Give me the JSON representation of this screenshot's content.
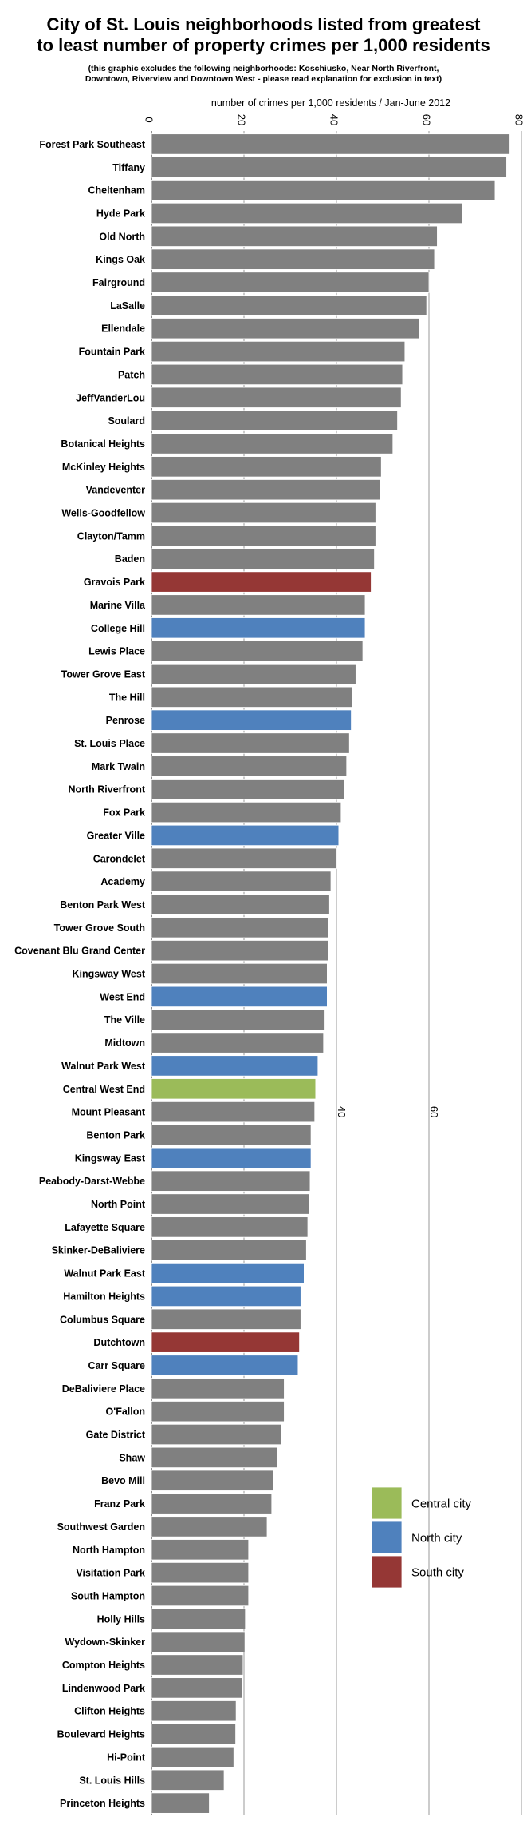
{
  "header": {
    "title_line1": "City of St. Louis neighborhoods listed from greatest",
    "title_line2": "to least number of property crimes per 1,000 residents",
    "note_line1": "(this graphic excludes the following neighborhoods: Koschiusko, Near North Riverfront,",
    "note_line2": "Downtown, Riverview and Downtown West - please read explanation for exclusion in text)"
  },
  "colors": {
    "default": "#808080",
    "central": "#9bbb59",
    "north": "#4f81bd",
    "south": "#953735"
  },
  "chart_data": {
    "type": "bar",
    "orientation": "horizontal",
    "xlabel": "number of crimes per 1,000 residents / Jan-June 2012",
    "xlim": [
      0,
      80
    ],
    "x_ticks": [
      0,
      20,
      40,
      60,
      80
    ],
    "mid_tick_labels": [
      "40",
      "60"
    ],
    "grid": true,
    "legend_position": "bottom-right",
    "legend": [
      {
        "key": "central",
        "label": "Central city"
      },
      {
        "key": "north",
        "label": "North city"
      },
      {
        "key": "south",
        "label": "South city"
      }
    ],
    "categories": [
      "Forest Park Southeast",
      "Tiffany",
      "Cheltenham",
      "Hyde Park",
      "Old North",
      "Kings Oak",
      "Fairground",
      "LaSalle",
      "Ellendale",
      "Fountain Park",
      "Patch",
      "JeffVanderLou",
      "Soulard",
      "Botanical Heights",
      "McKinley Heights",
      "Vandeventer",
      "Wells-Goodfellow",
      "Clayton/Tamm",
      "Baden",
      "Gravois Park",
      "Marine Villa",
      "College Hill",
      "Lewis Place",
      "Tower Grove East",
      "The Hill",
      "Penrose",
      "St. Louis Place",
      "Mark Twain",
      "North Riverfront",
      "Fox Park",
      "Greater Ville",
      "Carondelet",
      "Academy",
      "Benton Park West",
      "Tower Grove South",
      "Covenant Blu Grand Center",
      "Kingsway West",
      "West End",
      "The Ville",
      "Midtown",
      "Walnut Park West",
      "Central West End",
      "Mount Pleasant",
      "Benton Park",
      "Kingsway East",
      "Peabody-Darst-Webbe",
      "North Point",
      "Lafayette Square",
      "Skinker-DeBaliviere",
      "Walnut Park East",
      "Hamilton Heights",
      "Columbus Square",
      "Dutchtown",
      "Carr Square",
      "DeBaliviere Place",
      "O'Fallon",
      "Gate District",
      "Shaw",
      "Bevo Mill",
      "Franz Park",
      "Southwest Garden",
      "North Hampton",
      "Visitation Park",
      "South Hampton",
      "Holly Hills",
      "Wydown-Skinker",
      "Compton Heights",
      "Lindenwood Park",
      "Clifton Heights",
      "Boulevard Heights",
      "Hi-Point",
      "St. Louis Hills",
      "Princeton Heights"
    ],
    "values": [
      77.5,
      76.8,
      74.3,
      67.3,
      61.8,
      61.2,
      60.0,
      59.5,
      58.0,
      54.8,
      54.3,
      54.0,
      53.2,
      52.2,
      49.7,
      49.5,
      48.5,
      48.5,
      48.2,
      47.5,
      46.2,
      46.2,
      45.7,
      44.2,
      43.5,
      43.2,
      42.8,
      42.2,
      41.7,
      41.0,
      40.5,
      40.0,
      38.8,
      38.5,
      38.2,
      38.2,
      38.0,
      38.0,
      37.5,
      37.2,
      36.0,
      35.5,
      35.3,
      34.5,
      34.5,
      34.3,
      34.2,
      33.8,
      33.5,
      33.0,
      32.3,
      32.3,
      32.0,
      31.7,
      28.7,
      28.7,
      28.0,
      27.2,
      26.3,
      26.0,
      25.0,
      21.0,
      21.0,
      21.0,
      20.3,
      20.2,
      19.8,
      19.7,
      18.3,
      18.2,
      17.8,
      15.7,
      12.5
    ],
    "regions": [
      "default",
      "default",
      "default",
      "default",
      "default",
      "default",
      "default",
      "default",
      "default",
      "default",
      "default",
      "default",
      "default",
      "default",
      "default",
      "default",
      "default",
      "default",
      "default",
      "south",
      "default",
      "north",
      "default",
      "default",
      "default",
      "north",
      "default",
      "default",
      "default",
      "default",
      "north",
      "default",
      "default",
      "default",
      "default",
      "default",
      "default",
      "north",
      "default",
      "default",
      "north",
      "central",
      "default",
      "default",
      "north",
      "default",
      "default",
      "default",
      "default",
      "north",
      "north",
      "default",
      "south",
      "north",
      "default",
      "default",
      "default",
      "default",
      "default",
      "default",
      "default",
      "default",
      "default",
      "default",
      "default",
      "default",
      "default",
      "default",
      "default",
      "default",
      "default",
      "default",
      "default"
    ]
  }
}
